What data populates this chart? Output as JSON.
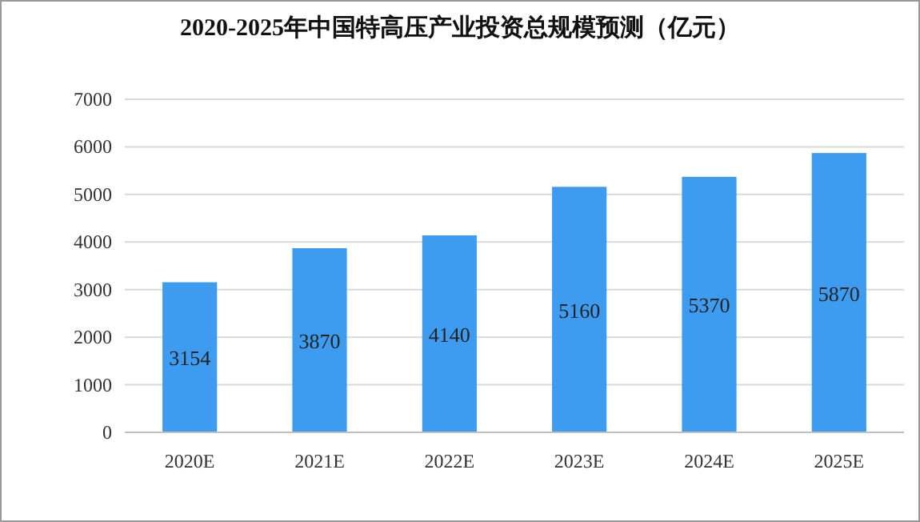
{
  "chart_data": {
    "type": "bar",
    "title": "2020-2025年中国特高压产业投资总规模预测（亿元）",
    "categories": [
      "2020E",
      "2021E",
      "2022E",
      "2023E",
      "2024E",
      "2025E"
    ],
    "values": [
      3154,
      3870,
      4140,
      5160,
      5370,
      5870
    ],
    "color": "#3d9bf0",
    "ylim": [
      0,
      7000
    ],
    "yticks": [
      0,
      1000,
      2000,
      3000,
      4000,
      5000,
      6000,
      7000
    ],
    "grid": "y",
    "data_labels": true
  }
}
